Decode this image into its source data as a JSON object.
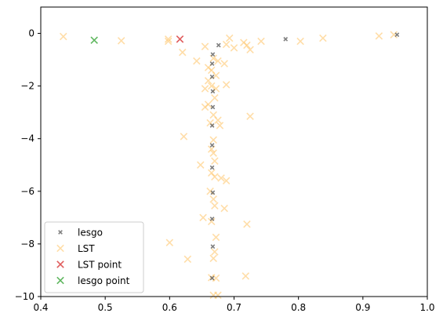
{
  "chart_data": {
    "type": "scatter",
    "title": "",
    "xlabel": "",
    "ylabel": "",
    "xlim": [
      0.4,
      1.0
    ],
    "ylim": [
      -10,
      1
    ],
    "grid": false,
    "legend_position": "lower-left",
    "x_ticks": [
      {
        "value": 0.4,
        "label": "0.4"
      },
      {
        "value": 0.5,
        "label": "0.5"
      },
      {
        "value": 0.6,
        "label": "0.6"
      },
      {
        "value": 0.7,
        "label": "0.7"
      },
      {
        "value": 0.8,
        "label": "0.8"
      },
      {
        "value": 0.9,
        "label": "0.9"
      },
      {
        "value": 1.0,
        "label": "1.0"
      }
    ],
    "y_ticks": [
      {
        "value": 0,
        "label": "0"
      },
      {
        "value": -2,
        "label": "−2"
      },
      {
        "value": -4,
        "label": "−4"
      },
      {
        "value": -6,
        "label": "−6"
      },
      {
        "value": -8,
        "label": "−8"
      },
      {
        "value": -10,
        "label": "−10"
      }
    ],
    "series": [
      {
        "name": "LST",
        "marker": "x",
        "color": "#ffc870",
        "opacity": 0.6,
        "points": [
          [
            0.435,
            -0.12
          ],
          [
            0.525,
            -0.28
          ],
          [
            0.598,
            -0.22
          ],
          [
            0.598,
            -0.3
          ],
          [
            0.62,
            -0.72
          ],
          [
            0.642,
            -1.05
          ],
          [
            0.655,
            -0.5
          ],
          [
            0.688,
            -0.42
          ],
          [
            0.693,
            -0.18
          ],
          [
            0.7,
            -0.55
          ],
          [
            0.715,
            -0.35
          ],
          [
            0.72,
            -0.45
          ],
          [
            0.725,
            -0.62
          ],
          [
            0.742,
            -0.3
          ],
          [
            0.803,
            -0.3
          ],
          [
            0.838,
            -0.18
          ],
          [
            0.925,
            -0.1
          ],
          [
            0.948,
            -0.05
          ],
          [
            0.668,
            -0.95
          ],
          [
            0.675,
            -1.05
          ],
          [
            0.685,
            -1.15
          ],
          [
            0.66,
            -1.3
          ],
          [
            0.665,
            -1.4
          ],
          [
            0.672,
            -1.6
          ],
          [
            0.66,
            -1.8
          ],
          [
            0.665,
            -2.0
          ],
          [
            0.655,
            -2.1
          ],
          [
            0.672,
            -2.1
          ],
          [
            0.688,
            -1.95
          ],
          [
            0.67,
            -2.45
          ],
          [
            0.66,
            -2.7
          ],
          [
            0.655,
            -2.8
          ],
          [
            0.668,
            -3.1
          ],
          [
            0.675,
            -3.3
          ],
          [
            0.663,
            -3.4
          ],
          [
            0.678,
            -3.5
          ],
          [
            0.725,
            -3.15
          ],
          [
            0.622,
            -3.92
          ],
          [
            0.668,
            -4.05
          ],
          [
            0.665,
            -4.4
          ],
          [
            0.668,
            -4.55
          ],
          [
            0.67,
            -4.85
          ],
          [
            0.648,
            -5.0
          ],
          [
            0.665,
            -5.3
          ],
          [
            0.67,
            -5.45
          ],
          [
            0.68,
            -5.5
          ],
          [
            0.688,
            -5.6
          ],
          [
            0.663,
            -6.0
          ],
          [
            0.668,
            -6.3
          ],
          [
            0.67,
            -6.55
          ],
          [
            0.685,
            -6.65
          ],
          [
            0.652,
            -7.0
          ],
          [
            0.665,
            -7.15
          ],
          [
            0.72,
            -7.25
          ],
          [
            0.672,
            -7.75
          ],
          [
            0.6,
            -7.95
          ],
          [
            0.67,
            -8.3
          ],
          [
            0.668,
            -8.55
          ],
          [
            0.628,
            -8.58
          ],
          [
            0.718,
            -9.22
          ],
          [
            0.665,
            -9.28
          ],
          [
            0.672,
            -9.3
          ],
          [
            0.668,
            -9.95
          ],
          [
            0.675,
            -9.95
          ]
        ]
      },
      {
        "name": "lesgo",
        "marker": "x",
        "color": "#555555",
        "opacity": 0.75,
        "points": [
          [
            0.953,
            -0.05
          ],
          [
            0.78,
            -0.22
          ],
          [
            0.676,
            -0.45
          ],
          [
            0.667,
            -0.8
          ],
          [
            0.666,
            -1.15
          ],
          [
            0.666,
            -1.65
          ],
          [
            0.667,
            -2.2
          ],
          [
            0.667,
            -2.8
          ],
          [
            0.666,
            -3.5
          ],
          [
            0.666,
            -4.25
          ],
          [
            0.666,
            -5.1
          ],
          [
            0.667,
            -6.05
          ],
          [
            0.666,
            -7.05
          ],
          [
            0.667,
            -8.1
          ],
          [
            0.666,
            -9.3
          ]
        ]
      },
      {
        "name": "LST point",
        "marker": "x",
        "color": "#d62728",
        "opacity": 0.75,
        "points": [
          [
            0.616,
            -0.22
          ]
        ]
      },
      {
        "name": "lesgo point",
        "marker": "x",
        "color": "#2ca02c",
        "opacity": 0.75,
        "points": [
          [
            0.483,
            -0.26
          ]
        ]
      }
    ],
    "legend": [
      {
        "label": "lesgo",
        "color": "#555555",
        "opacity": 0.75
      },
      {
        "label": "LST",
        "color": "#ffc870",
        "opacity": 0.6
      },
      {
        "label": "LST point",
        "color": "#d62728",
        "opacity": 0.75
      },
      {
        "label": "lesgo point",
        "color": "#2ca02c",
        "opacity": 0.75
      }
    ]
  }
}
